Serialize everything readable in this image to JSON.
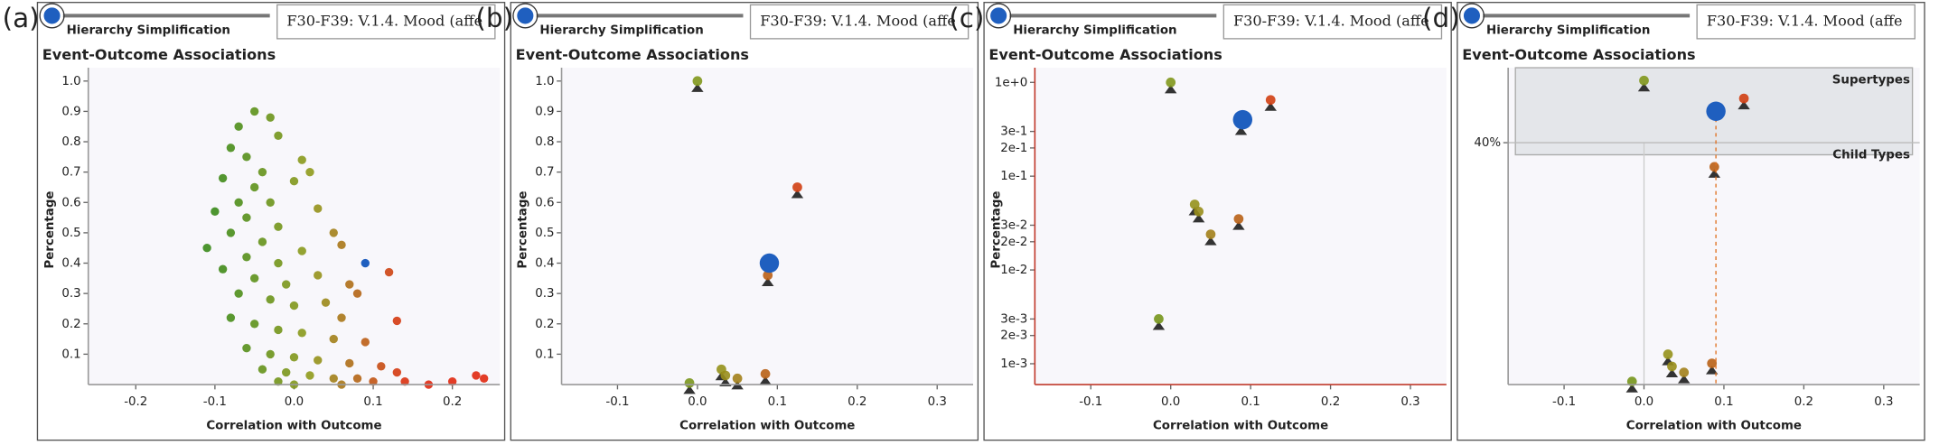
{
  "chart_data": [
    {
      "type": "scatter",
      "label": "(a)",
      "slider_label": "Hierarchy Simplification",
      "selection": "F30-F39: V.1.4. Mood (affe",
      "title": "Event-Outcome Associations",
      "x_label": "Correlation with Outcome",
      "y_label": "Percentage",
      "xlim": [
        -0.26,
        0.26
      ],
      "xticks": [
        -0.2,
        -0.1,
        {
          "value": 0,
          "label": "0.0"
        },
        0.1,
        0.2
      ],
      "ylim": [
        0,
        1.02
      ],
      "yticks": [
        0.1,
        0.2,
        0.3,
        0.4,
        0.5,
        0.6,
        0.7,
        0.8,
        0.9,
        {
          "value": 1,
          "label": "1.0"
        }
      ],
      "color_scale": {
        "stops": [
          -0.1,
          0.02,
          0.15
        ],
        "colors": [
          "#3a8a1a",
          "#8f9a1c",
          "#e0280f"
        ]
      },
      "axis_color": "#999999",
      "marker_size": 3.5,
      "x": [
        -0.07,
        -0.05,
        -0.03,
        -0.08,
        -0.06,
        -0.02,
        -0.04,
        -0.09,
        -0.05,
        -0.07,
        -0.03,
        -0.1,
        -0.06,
        -0.02,
        0.0,
        0.01,
        0.02,
        -0.08,
        -0.04,
        -0.11,
        -0.06,
        -0.02,
        0.03,
        0.05,
        0.06,
        0.01,
        -0.09,
        -0.05,
        -0.01,
        0.03,
        0.07,
        0.08,
        -0.07,
        -0.03,
        0.0,
        0.04,
        0.06,
        -0.08,
        -0.05,
        -0.02,
        0.01,
        0.05,
        0.09,
        -0.06,
        -0.03,
        0.0,
        0.03,
        0.07,
        0.11,
        0.13,
        -0.04,
        -0.01,
        0.02,
        0.05,
        0.08,
        0.1,
        0.14,
        0.17,
        0.2,
        0.23,
        0.24,
        0.13,
        0.12,
        0.0,
        -0.02,
        0.06
      ],
      "values": [
        0.85,
        0.9,
        0.88,
        0.78,
        0.75,
        0.82,
        0.7,
        0.68,
        0.65,
        0.6,
        0.6,
        0.57,
        0.55,
        0.52,
        0.67,
        0.74,
        0.7,
        0.5,
        0.47,
        0.45,
        0.42,
        0.4,
        0.58,
        0.5,
        0.46,
        0.44,
        0.38,
        0.35,
        0.33,
        0.36,
        0.33,
        0.3,
        0.3,
        0.28,
        0.26,
        0.27,
        0.22,
        0.22,
        0.2,
        0.18,
        0.17,
        0.15,
        0.14,
        0.12,
        0.1,
        0.09,
        0.08,
        0.07,
        0.06,
        0.04,
        0.05,
        0.04,
        0.03,
        0.02,
        0.02,
        0.01,
        0.01,
        0.0,
        0.01,
        0.03,
        0.02,
        0.21,
        0.37,
        0.0,
        0.01,
        0.0
      ],
      "highlight": {
        "x": 0.09,
        "value": 0.4,
        "color": "#1f5fbf",
        "size": 3.5
      }
    },
    {
      "type": "scatter",
      "label": "(b)",
      "slider_label": "Hierarchy Simplification",
      "selection": "F30-F39: V.1.4. Mood (affe",
      "title": "Event-Outcome Associations",
      "x_label": "Correlation with Outcome",
      "y_label": "Percentage",
      "xlim": [
        -0.17,
        0.345
      ],
      "xticks": [
        -0.1,
        {
          "value": 0,
          "label": "0.0"
        },
        0.1,
        0.2,
        0.3
      ],
      "ylim": [
        0,
        1.02
      ],
      "yticks": [
        0.1,
        0.2,
        0.3,
        0.4,
        0.5,
        0.6,
        0.7,
        0.8,
        0.9,
        {
          "value": 1,
          "label": "1.0"
        }
      ],
      "color_scale": {
        "stops": [
          -0.1,
          0.02,
          0.15
        ],
        "colors": [
          "#3a8a1a",
          "#8f9a1c",
          "#e0280f"
        ]
      },
      "axis_color": "#999999",
      "marker_size": 4,
      "x": [
        0.0,
        0.125,
        0.088,
        0.03,
        0.035,
        0.05,
        0.085,
        -0.01
      ],
      "values": [
        1.0,
        0.65,
        0.36,
        0.05,
        0.03,
        0.02,
        0.035,
        0.005
      ],
      "highlight": {
        "x": 0.09,
        "value": 0.4,
        "color": "#1f5fbf",
        "size": 8
      }
    },
    {
      "type": "scatter",
      "label": "(c)",
      "slider_label": "Hierarchy Simplification",
      "selection": "F30-F39: V.1.4. Mood (affe",
      "title": "Event-Outcome Associations",
      "x_label": "Correlation with Outcome",
      "y_label": "Percentage",
      "xlim": [
        -0.17,
        0.345
      ],
      "xticks": [
        -0.1,
        {
          "value": 0,
          "label": "0.0"
        },
        0.1,
        0.2,
        0.3
      ],
      "log_y": true,
      "ylim": [
        0.0006,
        1.2
      ],
      "yticks": [
        {
          "value": 1,
          "label": "1e+0"
        },
        {
          "value": 0.3,
          "label": "3e-1"
        },
        {
          "value": 0.2,
          "label": "2e-1"
        },
        {
          "value": 0.1,
          "label": "1e-1"
        },
        {
          "value": 0.03,
          "label": "3e-2"
        },
        {
          "value": 0.02,
          "label": "2e-2"
        },
        {
          "value": 0.01,
          "label": "1e-2"
        },
        {
          "value": 0.003,
          "label": "3e-3"
        },
        {
          "value": 0.002,
          "label": "2e-3"
        },
        {
          "value": 0.001,
          "label": "1e-3"
        }
      ],
      "color_scale": {
        "stops": [
          -0.1,
          0.02,
          0.15
        ],
        "colors": [
          "#3a8a1a",
          "#8f9a1c",
          "#e0280f"
        ]
      },
      "axis_color": "#c0392b",
      "marker_size": 4,
      "x": [
        0.0,
        0.125,
        0.088,
        0.03,
        0.035,
        0.05,
        0.085,
        -0.015
      ],
      "values": [
        1.0,
        0.65,
        0.36,
        0.05,
        0.042,
        0.024,
        0.035,
        0.003
      ],
      "highlight": {
        "x": 0.09,
        "value": 0.4,
        "color": "#1f5fbf",
        "size": 8
      }
    },
    {
      "type": "scatter",
      "label": "(d)",
      "slider_label": "Hierarchy Simplification",
      "selection": "F30-F39: V.1.4. Mood (affe",
      "title": "Event-Outcome Associations",
      "x_label": "Correlation with Outcome",
      "xlim": [
        -0.17,
        0.345
      ],
      "xticks": [
        -0.1,
        {
          "value": 0,
          "label": "0.0"
        },
        0.1,
        0.2,
        0.3
      ],
      "color_scale": {
        "stops": [
          -0.1,
          0.02,
          0.15
        ],
        "colors": [
          "#3a8a1a",
          "#8f9a1c",
          "#e0280f"
        ]
      },
      "axis_color": "#999999",
      "marker_size": 4,
      "series": [
        {
          "name": "Supertypes",
          "ylim": [
            -0.45,
            1.25
          ],
          "x": [
            0.0,
            0.125
          ],
          "values": [
            1.0,
            0.65
          ]
        },
        {
          "name": "Child Types",
          "ylim": [
            0,
            0.4
          ],
          "yticks": [
            {
              "value": 0.4,
              "label": "40%"
            }
          ],
          "x": [
            0.088,
            0.03,
            0.035,
            0.05,
            0.085,
            -0.015
          ],
          "values": [
            0.36,
            0.05,
            0.03,
            0.02,
            0.035,
            0.005
          ]
        }
      ],
      "highlight": {
        "x": 0.09,
        "value": 0.4,
        "color": "#1f5fbf",
        "size": 8
      }
    }
  ]
}
